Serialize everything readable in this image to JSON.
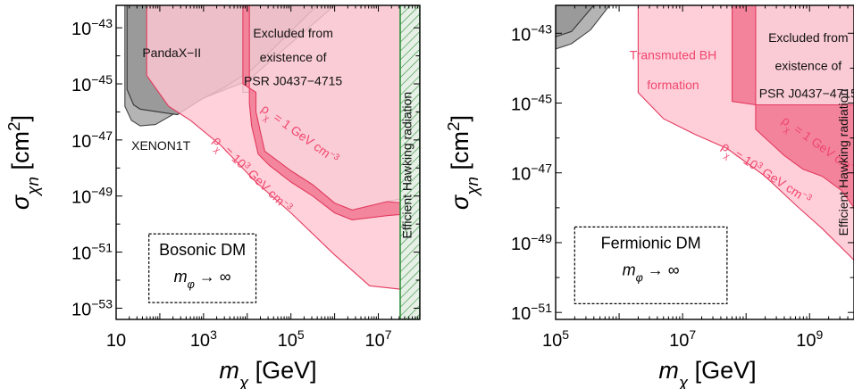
{
  "chart_data": [
    {
      "type": "area",
      "panel": "left",
      "xlabel": "m_χ [GeV]",
      "ylabel": "σ_χn [cm²]",
      "x_scale": "log",
      "y_scale": "log",
      "xlim_log10": [
        1,
        7.95
      ],
      "ylim_log10": [
        -53.4,
        -42.2
      ],
      "x_ticks": [
        {
          "v": 1,
          "label": "10"
        },
        {
          "v": 3,
          "label": "10^3"
        },
        {
          "v": 5,
          "label": "10^5"
        },
        {
          "v": 7,
          "label": "10^7"
        }
      ],
      "y_ticks": [
        {
          "v": -43,
          "label": "10^-43"
        },
        {
          "v": -45,
          "label": "10^-45"
        },
        {
          "v": -47,
          "label": "10^-47"
        },
        {
          "v": -49,
          "label": "10^-49"
        },
        {
          "v": -51,
          "label": "10^-51"
        },
        {
          "v": -53,
          "label": "10^-53"
        }
      ],
      "colors": {
        "pink": "#ffc7d2",
        "pink_line": "#e33a5e",
        "dark_pink": "#f27d96",
        "gray": "#c4c4c4",
        "light_gray": "#e4e4e4",
        "hawking": "#2f8f3a"
      },
      "regions": [
        {
          "name": "light-gray-psr",
          "kind": "poly",
          "fill": "#e4e4e4",
          "stroke": "#555555",
          "points": [
            [
              3.9,
              -45.3
            ],
            [
              3.9,
              -42.2
            ],
            [
              7.5,
              -42.2
            ],
            [
              7.5,
              -49.1
            ],
            [
              7.2,
              -49.2
            ],
            [
              6.4,
              -49.5
            ],
            [
              6.0,
              -49.25
            ],
            [
              5.5,
              -48.6
            ],
            [
              5.0,
              -48.1
            ],
            [
              4.4,
              -47.4
            ],
            [
              4.2,
              -46.0
            ],
            [
              4.2,
              -45.3
            ]
          ]
        },
        {
          "name": "xenon",
          "kind": "poly",
          "fill": "#b4b4b4",
          "stroke": "#444444",
          "points": [
            [
              1.2,
              -42.2
            ],
            [
              1.2,
              -45.8
            ],
            [
              1.35,
              -46.3
            ],
            [
              1.55,
              -46.5
            ],
            [
              1.9,
              -46.45
            ],
            [
              2.4,
              -46.0
            ],
            [
              3.0,
              -45.5
            ],
            [
              3.5,
              -45.2
            ],
            [
              4.0,
              -44.9
            ],
            [
              6.0,
              -42.2
            ]
          ]
        },
        {
          "name": "panda",
          "kind": "poly",
          "fill": "#9a9a9a",
          "stroke": "#333333",
          "points": [
            [
              1.25,
              -42.2
            ],
            [
              1.25,
              -45.2
            ],
            [
              1.4,
              -45.75
            ],
            [
              1.55,
              -45.9
            ],
            [
              2.4,
              -46.1
            ],
            [
              2.9,
              -45.6
            ],
            [
              3.5,
              -45.1
            ],
            [
              4.1,
              -44.5
            ],
            [
              5.6,
              -42.2
            ]
          ]
        },
        {
          "name": "pink-1e3",
          "kind": "poly",
          "fill": "#ffc7d2",
          "fill_opacity": 0.82,
          "stroke": "#e33a5e",
          "points": [
            [
              1.7,
              -42.2
            ],
            [
              1.7,
              -44.7
            ],
            [
              2.2,
              -45.8
            ],
            [
              2.7,
              -46.3
            ],
            [
              3.4,
              -47.2
            ],
            [
              4.2,
              -48.5
            ],
            [
              5.0,
              -49.6
            ],
            [
              6.0,
              -51.1
            ],
            [
              6.8,
              -52.2
            ],
            [
              7.95,
              -52.4
            ],
            [
              7.95,
              -42.2
            ]
          ]
        },
        {
          "name": "dark-pink",
          "kind": "poly",
          "fill": "#f27d96",
          "fill_opacity": 0.9,
          "stroke": "#e33a5e",
          "points": [
            [
              3.9,
              -42.2
            ],
            [
              3.9,
              -45.0
            ],
            [
              4.2,
              -45.3
            ],
            [
              4.2,
              -46.0
            ],
            [
              4.4,
              -47.4
            ],
            [
              5.0,
              -48.1
            ],
            [
              5.5,
              -48.6
            ],
            [
              6.0,
              -49.25
            ],
            [
              6.4,
              -49.5
            ],
            [
              7.2,
              -49.2
            ],
            [
              7.95,
              -49.3
            ],
            [
              7.95,
              -49.6
            ],
            [
              7.2,
              -49.7
            ],
            [
              6.4,
              -49.85
            ],
            [
              6.0,
              -49.6
            ],
            [
              5.5,
              -49.0
            ],
            [
              5.0,
              -48.5
            ],
            [
              4.5,
              -47.9
            ],
            [
              4.25,
              -47.5
            ],
            [
              4.1,
              -46.5
            ],
            [
              4.05,
              -45.7
            ],
            [
              4.05,
              -42.2
            ]
          ]
        },
        {
          "name": "hawking-band",
          "kind": "band",
          "x0": 7.5,
          "x1": 7.95,
          "fill": "#e6f0e6",
          "hatch": "#2f8f3a"
        }
      ],
      "annotations": [
        {
          "text": "PandaX−II",
          "x": 1.6,
          "y": -44.05,
          "style": "region",
          "size": 16
        },
        {
          "text": "XENON1T",
          "x": 1.35,
          "y": -47.35,
          "style": "region",
          "size": 15
        },
        {
          "text": "Excluded from",
          "x": 5.05,
          "y": -43.35,
          "style": "region",
          "anchor": "middle"
        },
        {
          "text": "existence of",
          "x": 5.05,
          "y": -44.2,
          "style": "region",
          "anchor": "middle"
        },
        {
          "text": "PSR J0437−4715",
          "x": 5.05,
          "y": -45.05,
          "style": "region",
          "anchor": "middle"
        },
        {
          "text": "ρ_χ = 1 GeV cm^-3",
          "x": 4.3,
          "y": -45.95,
          "rotate": 36,
          "style": "pink",
          "size": 17
        },
        {
          "text": "ρ_χ = 10^3 GeV cm^-3",
          "x": 3.2,
          "y": -47.05,
          "rotate": 44,
          "style": "pink",
          "size": 17
        },
        {
          "text": "Efficient Hawking radiation",
          "x": 7.76,
          "y": -47.9,
          "rotate": -90,
          "style": "region",
          "size": 17,
          "anchor": "middle"
        }
      ],
      "box": {
        "x0": 1.75,
        "x1": 4.2,
        "y0": -52.8,
        "y1": -50.35,
        "title": "Bosonic DM",
        "subtitle": "m_φ → ∞"
      }
    },
    {
      "type": "area",
      "panel": "right",
      "xlabel": "m_χ [GeV]",
      "ylabel": "σ_χn [cm²]",
      "x_scale": "log",
      "y_scale": "log",
      "xlim_log10": [
        5,
        9.7
      ],
      "ylim_log10": [
        -51.2,
        -42.2
      ],
      "x_ticks": [
        {
          "v": 5,
          "label": "10^5"
        },
        {
          "v": 7,
          "label": "10^7"
        },
        {
          "v": 9,
          "label": "10^9"
        }
      ],
      "y_ticks": [
        {
          "v": -43,
          "label": "10^-43"
        },
        {
          "v": -45,
          "label": "10^-45"
        },
        {
          "v": -47,
          "label": "10^-47"
        },
        {
          "v": -49,
          "label": "10^-49"
        },
        {
          "v": -51,
          "label": "10^-51"
        }
      ],
      "colors": {
        "pink": "#ffc7d2",
        "pink_line": "#e33a5e",
        "dark_pink": "#f27d96",
        "gray": "#c4c4c4",
        "light_gray": "#e4e4e4"
      },
      "regions": [
        {
          "name": "light-gray-psr",
          "kind": "poly",
          "fill": "#e4e4e4",
          "stroke": "#555555",
          "points": [
            [
              8.15,
              -42.2
            ],
            [
              8.15,
              -45.05
            ],
            [
              9.7,
              -45.05
            ],
            [
              9.7,
              -42.2
            ]
          ]
        },
        {
          "name": "xenon-corner",
          "kind": "poly",
          "fill": "#b4b4b4",
          "stroke": "#444444",
          "points": [
            [
              5,
              -42.2
            ],
            [
              5,
              -43.45
            ],
            [
              5.25,
              -43.3
            ],
            [
              5.55,
              -42.9
            ],
            [
              5.85,
              -42.2
            ]
          ]
        },
        {
          "name": "panda-corner",
          "kind": "poly",
          "fill": "#9a9a9a",
          "stroke": "#333333",
          "points": [
            [
              5,
              -42.2
            ],
            [
              5,
              -43.1
            ],
            [
              5.25,
              -42.95
            ],
            [
              5.6,
              -42.2
            ]
          ]
        },
        {
          "name": "pink-1e3",
          "kind": "poly",
          "fill": "#ffc7d2",
          "fill_opacity": 0.85,
          "stroke": "#e33a5e",
          "points": [
            [
              6.3,
              -42.2
            ],
            [
              6.3,
              -44.7
            ],
            [
              6.7,
              -45.45
            ],
            [
              7.2,
              -45.9
            ],
            [
              7.7,
              -46.3
            ],
            [
              8.3,
              -47.1
            ],
            [
              8.8,
              -47.95
            ],
            [
              9.2,
              -48.6
            ],
            [
              9.7,
              -49.5
            ],
            [
              9.7,
              -42.2
            ]
          ]
        },
        {
          "name": "dark-pink",
          "kind": "poly",
          "fill": "#f27d96",
          "fill_opacity": 0.92,
          "stroke": "#e33a5e",
          "points": [
            [
              7.78,
              -42.2
            ],
            [
              7.78,
              -44.95
            ],
            [
              8.15,
              -45.05
            ],
            [
              9.7,
              -45.05
            ],
            [
              9.7,
              -48.0
            ],
            [
              9.5,
              -47.5
            ],
            [
              9.2,
              -47.1
            ],
            [
              8.9,
              -46.9
            ],
            [
              8.6,
              -46.5
            ],
            [
              8.3,
              -46.0
            ],
            [
              8.15,
              -45.75
            ],
            [
              8.15,
              -42.2
            ]
          ]
        }
      ],
      "annotations": [
        {
          "text": "Transmuted BH",
          "x": 6.85,
          "y": -43.75,
          "style": "pink",
          "size": 16,
          "anchor": "middle"
        },
        {
          "text": "formation",
          "x": 6.85,
          "y": -44.6,
          "style": "pink",
          "size": 16,
          "anchor": "middle"
        },
        {
          "text": "Excluded from",
          "x": 8.98,
          "y": -43.25,
          "style": "region",
          "anchor": "middle",
          "size": 13
        },
        {
          "text": "existence of",
          "x": 8.98,
          "y": -44.05,
          "style": "region",
          "anchor": "middle",
          "size": 13
        },
        {
          "text": "PSR J0437−4715",
          "x": 8.98,
          "y": -44.85,
          "style": "region",
          "anchor": "middle",
          "size": 13
        },
        {
          "text": "ρ_χ = 1 GeV cm^-3",
          "x": 8.55,
          "y": -45.55,
          "rotate": 36,
          "style": "pink",
          "size": 17
        },
        {
          "text": "ρ_χ = 10^3 GeV cm^-3",
          "x": 7.6,
          "y": -46.3,
          "rotate": 33,
          "style": "pink",
          "size": 17
        },
        {
          "text": "Efficient Hawking radiation",
          "x": 9.6,
          "y": -46.7,
          "rotate": -90,
          "style": "region",
          "size": 17,
          "anchor": "middle"
        }
      ],
      "box": {
        "x0": 5.3,
        "x1": 7.7,
        "y0": -50.75,
        "y1": -48.55,
        "title": "Fermionic DM",
        "subtitle": "m_φ → ∞"
      }
    }
  ]
}
